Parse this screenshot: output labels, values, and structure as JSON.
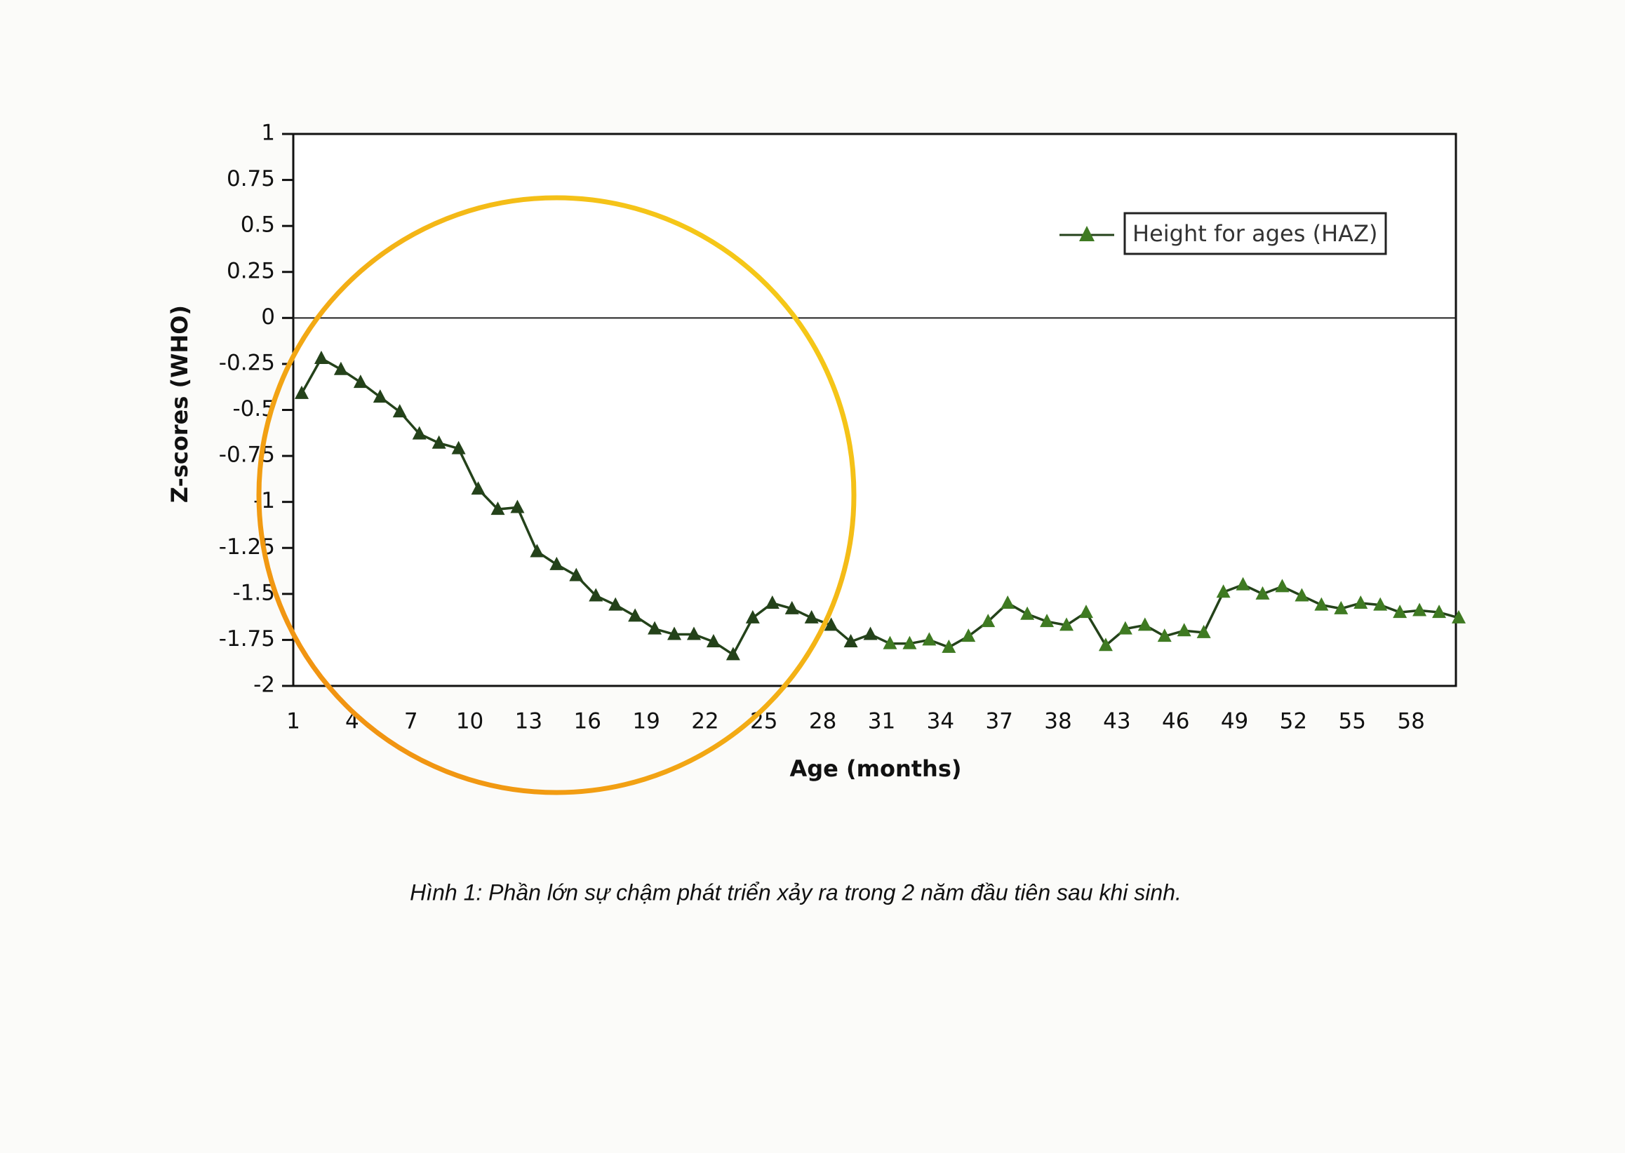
{
  "chart_data": {
    "type": "line",
    "caption": "Hình 1: Phần lớn sự chậm phát triển xảy ra trong 2 năm đầu tiên sau khi sinh.",
    "x_label": "Age (months)",
    "y_label": "Z-scores (WHO)",
    "categories": [
      "1",
      null,
      null,
      "4",
      null,
      null,
      "7",
      null,
      null,
      "10",
      null,
      null,
      "13",
      null,
      null,
      "16",
      null,
      null,
      "19",
      null,
      null,
      "22",
      null,
      null,
      "25",
      null,
      null,
      "28",
      null,
      null,
      "31",
      null,
      null,
      "34",
      null,
      null,
      "37",
      null,
      null,
      "38",
      null,
      null,
      "43",
      null,
      null,
      "46",
      null,
      null,
      "49",
      null,
      null,
      "52",
      null,
      null,
      "55",
      null,
      null,
      "58",
      null,
      null
    ],
    "series": [
      {
        "name": "Height for ages (HAZ)",
        "color": "#24421a",
        "values": [
          -0.41,
          -0.22,
          -0.28,
          -0.35,
          -0.43,
          -0.51,
          -0.63,
          -0.68,
          -0.71,
          -0.93,
          -1.04,
          -1.03,
          -1.27,
          -1.34,
          -1.4,
          -1.51,
          -1.56,
          -1.62,
          -1.69,
          -1.72,
          -1.72,
          -1.76,
          -1.83,
          -1.63,
          -1.55,
          -1.58,
          -1.63,
          -1.67,
          -1.76,
          -1.72,
          -1.77,
          -1.77,
          -1.75,
          -1.79,
          -1.73,
          -1.65,
          -1.55,
          -1.61,
          -1.65,
          -1.67,
          -1.6,
          -1.78,
          -1.69,
          -1.67,
          -1.73,
          -1.7,
          -1.71,
          -1.49,
          -1.45,
          -1.5,
          -1.46,
          -1.51,
          -1.56,
          -1.58,
          -1.55,
          -1.56,
          -1.6,
          -1.59,
          -1.6,
          -1.63
        ]
      }
    ],
    "marker_color": "#3f7a22",
    "ylim": [
      -2,
      1
    ],
    "yticks": [
      1,
      0.75,
      0.5,
      0.25,
      0,
      -0.25,
      -0.5,
      -0.75,
      -1,
      -1.25,
      -1.5,
      -1.75,
      -2
    ],
    "zero_line": true
  }
}
